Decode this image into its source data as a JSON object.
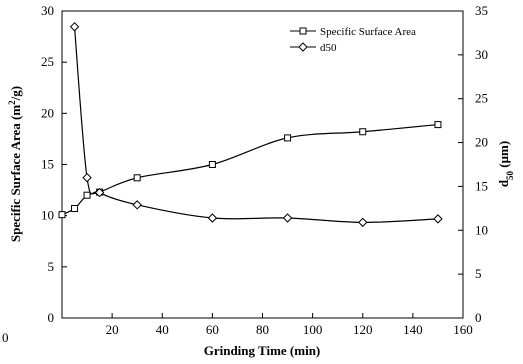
{
  "chart_data": {
    "type": "line",
    "x_axis": {
      "label": "Grinding Time (min)",
      "range": [
        0,
        160
      ],
      "ticks": [
        "0",
        "20",
        "40",
        "60",
        "80",
        "100",
        "120",
        "140",
        "160"
      ]
    },
    "y_left": {
      "label_main": "Specific Surface Area (m",
      "label_sup": "2",
      "label_tail": "/g)",
      "range": [
        0,
        30
      ],
      "ticks": [
        "0",
        "5",
        "10",
        "15",
        "20",
        "25",
        "30"
      ]
    },
    "y_right": {
      "label_main": "d",
      "label_sub": "50",
      "label_tail": " (μm)",
      "range": [
        0,
        35
      ],
      "ticks": [
        "0",
        "5",
        "10",
        "15",
        "20",
        "25",
        "30",
        "35"
      ]
    },
    "stray_label": "0",
    "grid": false,
    "legend_position": "top-right",
    "series": [
      {
        "name": "Specific Surface Area",
        "axis": "left",
        "marker": "square",
        "x": [
          0,
          5,
          10,
          15,
          30,
          60,
          90,
          120,
          150
        ],
        "y": [
          10.1,
          10.7,
          12.0,
          12.3,
          13.7,
          15.0,
          17.6,
          18.2,
          18.9
        ]
      },
      {
        "name": "d50",
        "axis": "right",
        "marker": "diamond",
        "x": [
          5,
          10,
          15,
          30,
          60,
          90,
          120,
          150
        ],
        "y": [
          33.2,
          16.0,
          14.3,
          12.9,
          11.4,
          11.4,
          10.9,
          11.3
        ]
      }
    ]
  }
}
